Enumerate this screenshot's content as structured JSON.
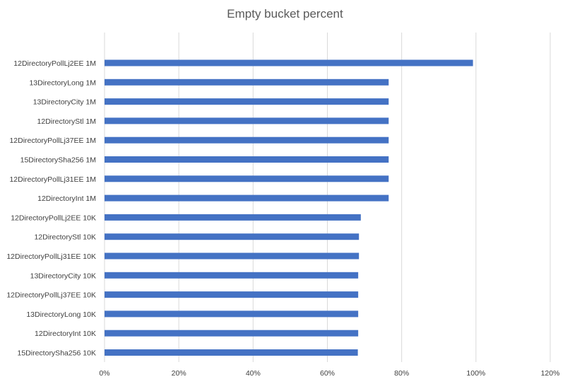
{
  "chart_data": {
    "type": "bar",
    "orientation": "horizontal",
    "title": "Empty bucket percent",
    "xlabel": "",
    "ylabel": "",
    "xlim": [
      0,
      1.2
    ],
    "x_ticks": [
      0,
      0.2,
      0.4,
      0.6,
      0.8,
      1.0,
      1.2
    ],
    "x_tick_labels": [
      "0%",
      "20%",
      "40%",
      "60%",
      "80%",
      "100%",
      "120%"
    ],
    "grid": true,
    "legend": "none",
    "bar_color": "#4472C4",
    "categories": [
      "12DirectoryPollLj2EE 1M",
      "13DirectoryLong 1M",
      "13DirectoryCity 1M",
      "12DirectoryStl 1M",
      "12DirectoryPollLj37EE 1M",
      "15DirectorySha256 1M",
      "12DirectoryPollLj31EE 1M",
      "12DirectoryInt 1M",
      "12DirectoryPollLj2EE 10K",
      "12DirectoryStl 10K",
      "12DirectoryPollLj31EE 10K",
      "13DirectoryCity 10K",
      "12DirectoryPollLj37EE 10K",
      "13DirectoryLong 10K",
      "12DirectoryInt 10K",
      "15DirectorySha256 10K"
    ],
    "values": [
      0.992,
      0.765,
      0.765,
      0.765,
      0.765,
      0.765,
      0.765,
      0.765,
      0.69,
      0.685,
      0.685,
      0.683,
      0.683,
      0.683,
      0.683,
      0.682
    ]
  }
}
